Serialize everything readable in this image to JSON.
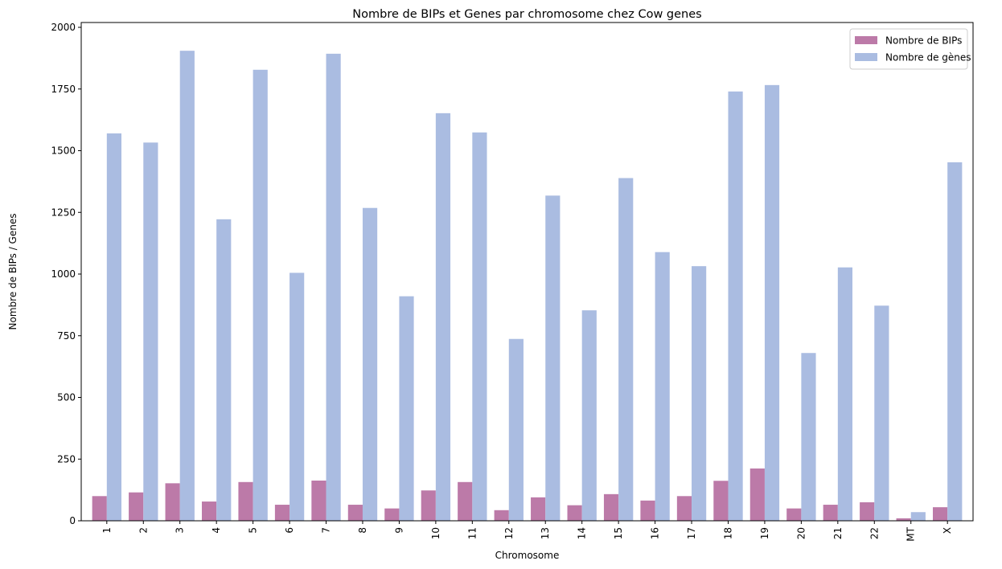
{
  "chart_data": {
    "type": "bar",
    "title": "Nombre de BIPs et Genes par chromosome chez Cow genes",
    "xlabel": "Chromosome",
    "ylabel": "Nombre de BIPs / Genes",
    "ylim": [
      0,
      2000
    ],
    "yticks": [
      0,
      250,
      500,
      750,
      1000,
      1250,
      1500,
      1750,
      2000
    ],
    "categories": [
      "1",
      "2",
      "3",
      "4",
      "5",
      "6",
      "7",
      "8",
      "9",
      "10",
      "11",
      "12",
      "13",
      "14",
      "15",
      "16",
      "17",
      "18",
      "19",
      "20",
      "21",
      "22",
      "MT",
      "X"
    ],
    "series": [
      {
        "name": "Nombre de BIPs",
        "color": "#bc7aa8",
        "values": [
          100,
          115,
          152,
          78,
          157,
          65,
          163,
          65,
          50,
          123,
          157,
          43,
          95,
          63,
          108,
          82,
          100,
          162,
          212,
          50,
          65,
          75,
          10,
          55
        ]
      },
      {
        "name": "Nombre de gènes",
        "color": "#aabce1",
        "values": [
          1570,
          1533,
          1905,
          1222,
          1828,
          1005,
          1893,
          1268,
          910,
          1652,
          1574,
          737,
          1318,
          853,
          1389,
          1089,
          1032,
          1740,
          1766,
          680,
          1027,
          872,
          35,
          1453
        ]
      }
    ],
    "legend": "top-right",
    "grid": false
  }
}
